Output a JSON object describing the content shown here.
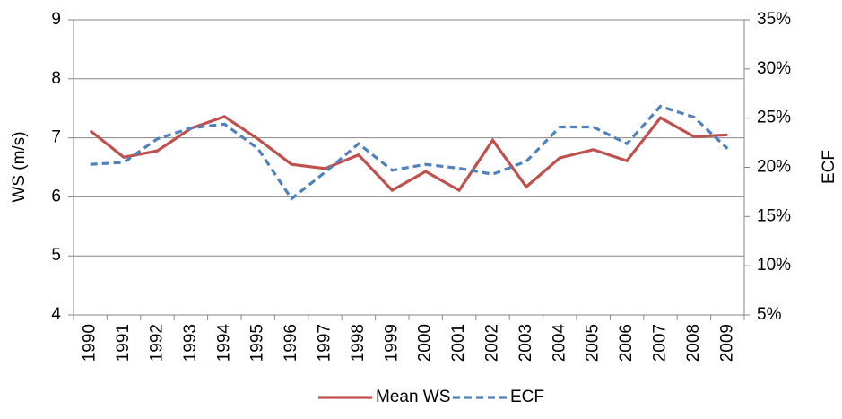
{
  "chart_data": {
    "type": "line",
    "categories": [
      "1990",
      "1991",
      "1992",
      "1993",
      "1994",
      "1995",
      "1996",
      "1997",
      "1998",
      "1999",
      "2000",
      "2001",
      "2002",
      "2003",
      "2004",
      "2005",
      "2006",
      "2007",
      "2008",
      "2009"
    ],
    "y_label": "WS (m/s)",
    "y2_label": "ECF",
    "ylim": [
      4,
      9
    ],
    "yticks": [
      4,
      5,
      6,
      7,
      8,
      9
    ],
    "y2lim": [
      5,
      35
    ],
    "y2ticks": [
      {
        "value": 5,
        "label": "5%"
      },
      {
        "value": 10,
        "label": "10%"
      },
      {
        "value": 15,
        "label": "15%"
      },
      {
        "value": 20,
        "label": "20%"
      },
      {
        "value": 25,
        "label": "25%"
      },
      {
        "value": 30,
        "label": "30%"
      },
      {
        "value": 35,
        "label": "35%"
      }
    ],
    "grid": true,
    "legend": "bottom",
    "series": [
      {
        "name": "Mean WS",
        "color": "#c0504d",
        "values": [
          7.12,
          6.67,
          6.78,
          7.16,
          7.36,
          6.98,
          6.55,
          6.48,
          6.71,
          6.11,
          6.43,
          6.11,
          6.96,
          6.17,
          6.66,
          6.8,
          6.61,
          7.34,
          7.02,
          7.05
        ]
      },
      {
        "name": "ECF",
        "color": "#4f81bd",
        "axis": "y2",
        "dashed": true,
        "values": [
          20.3,
          20.5,
          22.9,
          24.0,
          24.4,
          21.9,
          16.8,
          19.5,
          22.4,
          19.7,
          20.3,
          19.9,
          19.3,
          20.6,
          24.1,
          24.1,
          22.4,
          26.2,
          25.1,
          21.9
        ]
      }
    ]
  }
}
